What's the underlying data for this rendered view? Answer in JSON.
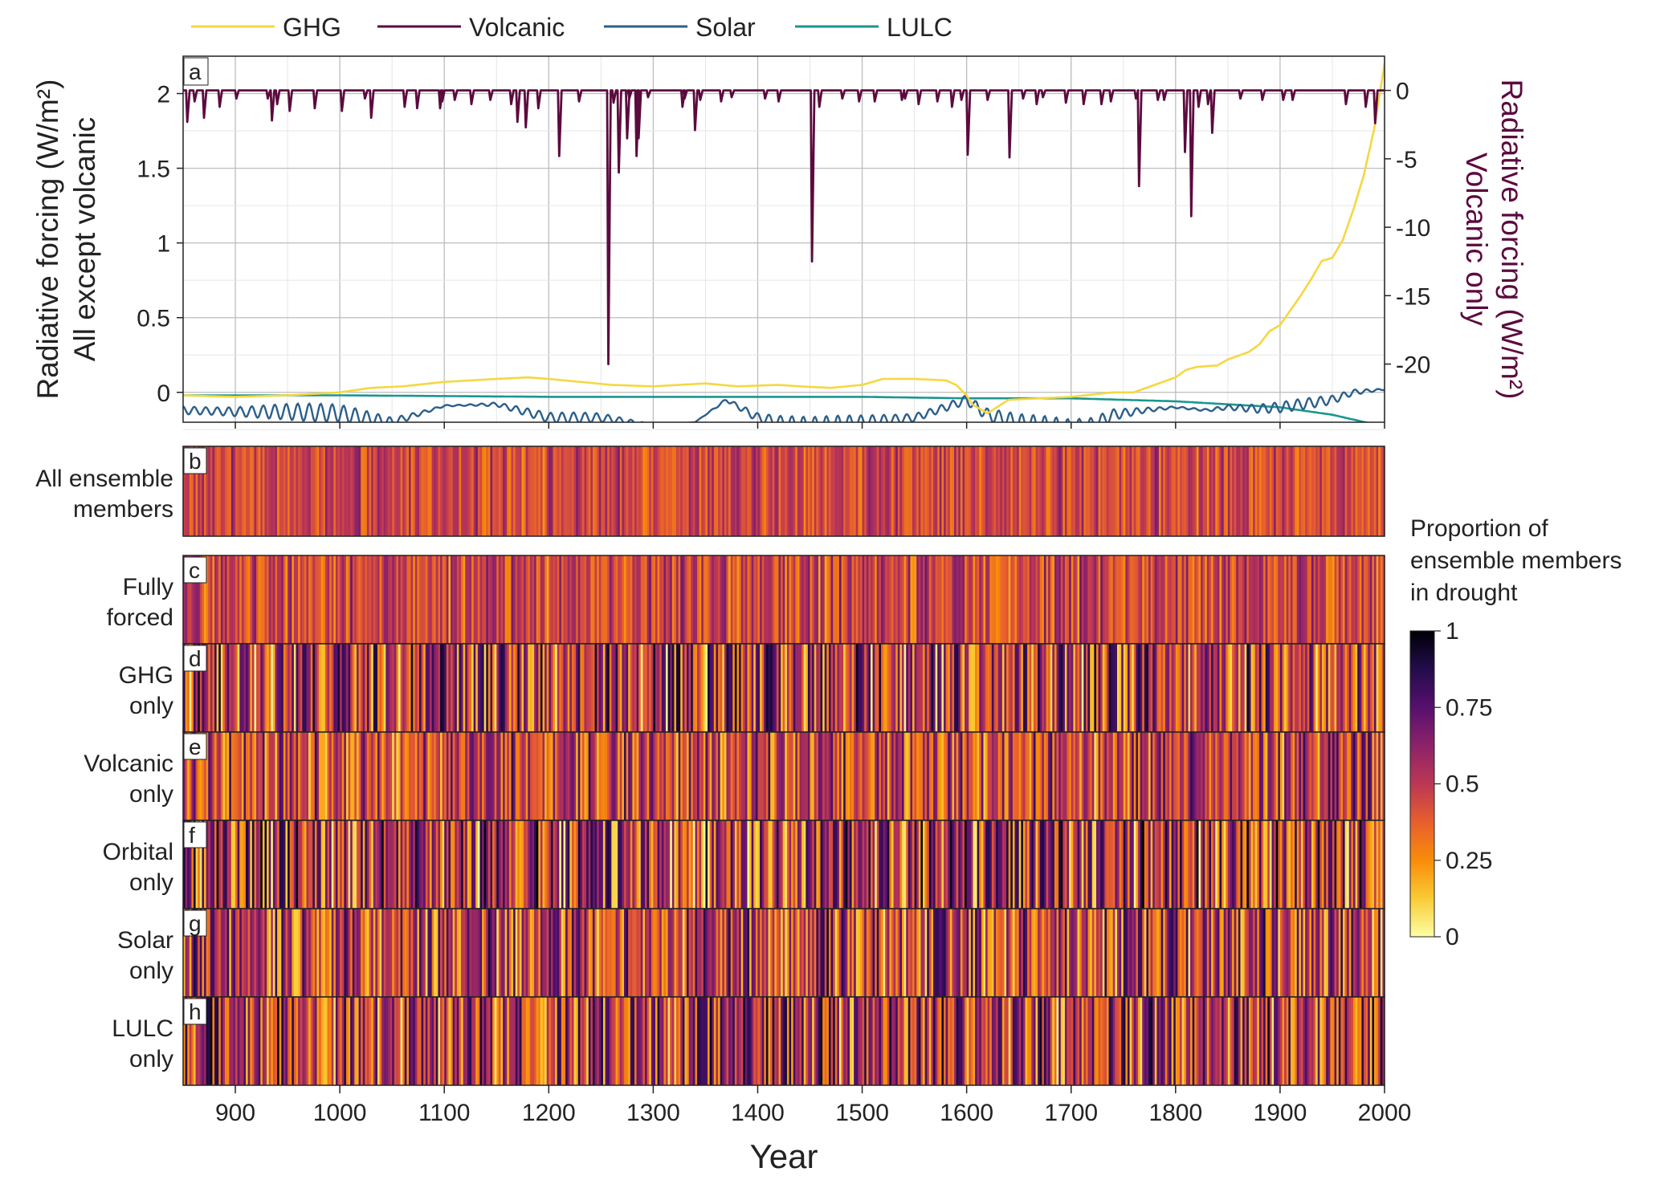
{
  "chart_data": {
    "type": "line",
    "xlabel": "Year",
    "xlim": [
      850,
      2000
    ],
    "xticks": [
      900,
      1000,
      1100,
      1200,
      1300,
      1400,
      1500,
      1600,
      1700,
      1800,
      1900,
      2000
    ],
    "legend": {
      "placement": "top",
      "entries": [
        {
          "name": "GHG",
          "color": "#F5D742"
        },
        {
          "name": "Volcanic",
          "color": "#5C0A3E"
        },
        {
          "name": "Solar",
          "color": "#2C5F8A"
        },
        {
          "name": "LULC",
          "color": "#1B9690"
        }
      ]
    },
    "panel_a": {
      "label": "a",
      "ylabel_left_line1": "Radiative forcing (W/m²)",
      "ylabel_left_line2": "All except volcanic",
      "ylabel_right_line1": "Radiative forcing (W/m²)",
      "ylabel_right_line2": "Volcanic only",
      "ylim_left": [
        -0.2,
        2.25
      ],
      "yticks_left": [
        "0",
        "0.5",
        "1",
        "1.5",
        "2"
      ],
      "ylim_right": [
        -24.25,
        2.5
      ],
      "yticks_right": [
        "0",
        "-5",
        "-10",
        "-15",
        "-20"
      ],
      "grid": true,
      "series": [
        {
          "name": "GHG",
          "axis": "left",
          "color": "#F5D742",
          "x": [
            850,
            900,
            950,
            1000,
            1030,
            1060,
            1100,
            1150,
            1180,
            1200,
            1230,
            1260,
            1300,
            1350,
            1380,
            1420,
            1440,
            1470,
            1500,
            1520,
            1550,
            1580,
            1590,
            1600,
            1605,
            1620,
            1640,
            1700,
            1740,
            1760,
            1780,
            1800,
            1810,
            1820,
            1840,
            1850,
            1870,
            1880,
            1890,
            1900,
            1910,
            1920,
            1930,
            1940,
            1950,
            1960,
            1970,
            1980,
            1990,
            2000
          ],
          "y": [
            -0.02,
            -0.03,
            -0.02,
            0.0,
            0.03,
            0.04,
            0.07,
            0.09,
            0.1,
            0.09,
            0.07,
            0.05,
            0.04,
            0.06,
            0.04,
            0.05,
            0.04,
            0.03,
            0.05,
            0.09,
            0.09,
            0.08,
            0.05,
            -0.02,
            -0.08,
            -0.14,
            -0.05,
            -0.03,
            0.0,
            0.0,
            0.05,
            0.1,
            0.15,
            0.17,
            0.18,
            0.22,
            0.27,
            0.32,
            0.41,
            0.45,
            0.55,
            0.65,
            0.76,
            0.88,
            0.9,
            1.02,
            1.22,
            1.45,
            1.76,
            2.2
          ]
        },
        {
          "name": "Solar",
          "axis": "left",
          "color": "#2C5F8A",
          "oscillating": true,
          "x": [
            850,
            900,
            950,
            1000,
            1050,
            1100,
            1150,
            1200,
            1250,
            1280,
            1300,
            1340,
            1370,
            1400,
            1420,
            1450,
            1500,
            1550,
            1580,
            1600,
            1620,
            1650,
            1700,
            1720,
            1740,
            1770,
            1800,
            1830,
            1850,
            1880,
            1900,
            1920,
            1950,
            1970,
            2000
          ],
          "y": [
            -0.12,
            -0.13,
            -0.13,
            -0.14,
            -0.2,
            -0.09,
            -0.08,
            -0.17,
            -0.17,
            -0.2,
            -0.22,
            -0.2,
            -0.05,
            -0.17,
            -0.2,
            -0.22,
            -0.2,
            -0.17,
            -0.1,
            -0.05,
            -0.15,
            -0.2,
            -0.24,
            -0.22,
            -0.15,
            -0.12,
            -0.1,
            -0.12,
            -0.1,
            -0.11,
            -0.1,
            -0.08,
            -0.05,
            0.0,
            0.02
          ]
        },
        {
          "name": "LULC",
          "axis": "left",
          "color": "#1B9690",
          "x": [
            850,
            1000,
            1200,
            1400,
            1500,
            1600,
            1700,
            1750,
            1800,
            1850,
            1900,
            1950,
            2000
          ],
          "y": [
            -0.02,
            -0.02,
            -0.03,
            -0.03,
            -0.03,
            -0.04,
            -0.04,
            -0.05,
            -0.06,
            -0.08,
            -0.1,
            -0.15,
            -0.23
          ]
        },
        {
          "name": "Volcanic",
          "axis": "right",
          "color": "#5C0A3E",
          "eruptions_x": [
            854,
            861,
            870,
            885,
            901,
            931,
            935,
            940,
            952,
            976,
            1002,
            1024,
            1030,
            1062,
            1074,
            1096,
            1098,
            1110,
            1126,
            1144,
            1164,
            1170,
            1178,
            1190,
            1210,
            1229,
            1257,
            1262,
            1267,
            1275,
            1277,
            1284,
            1286,
            1295,
            1328,
            1330,
            1340,
            1345,
            1365,
            1375,
            1407,
            1420,
            1452,
            1459,
            1481,
            1497,
            1512,
            1538,
            1541,
            1554,
            1572,
            1586,
            1595,
            1601,
            1620,
            1641,
            1654,
            1667,
            1673,
            1695,
            1712,
            1729,
            1738,
            1762,
            1765,
            1783,
            1789,
            1809,
            1815,
            1822,
            1831,
            1835,
            1862,
            1883,
            1903,
            1912,
            1963,
            1982,
            1991
          ],
          "eruptions_depth": [
            -2.3,
            -0.8,
            -2.0,
            -1.2,
            -0.6,
            -0.6,
            -2.2,
            -1.0,
            -1.5,
            -1.3,
            -1.5,
            -0.6,
            -2.0,
            -1.2,
            -1.3,
            -1.3,
            -0.8,
            -0.7,
            -1.0,
            -0.7,
            -1.0,
            -2.3,
            -2.7,
            -1.3,
            -4.8,
            -0.8,
            -20.0,
            -0.9,
            -6.0,
            -3.5,
            -0.6,
            -4.8,
            -3.5,
            -0.5,
            -1.2,
            -0.6,
            -2.9,
            -0.7,
            -0.8,
            -0.5,
            -0.6,
            -0.8,
            -12.5,
            -1.2,
            -0.6,
            -0.8,
            -0.8,
            -0.7,
            -0.6,
            -1.0,
            -0.8,
            -1.2,
            -0.7,
            -4.7,
            -0.7,
            -4.9,
            -0.6,
            -1.0,
            -0.5,
            -0.9,
            -1.0,
            -1.0,
            -0.8,
            -0.6,
            -7.0,
            -0.7,
            -0.7,
            -4.5,
            -9.2,
            -1.2,
            -1.0,
            -3.1,
            -0.6,
            -0.7,
            -0.7,
            -0.7,
            -1.0,
            -1.2,
            -2.4
          ]
        }
      ]
    },
    "heatmap_panels": [
      {
        "label": "b",
        "row_label_line1": "All ensemble",
        "row_label_line2": "members"
      },
      {
        "label": "c",
        "row_label_line1": "Fully",
        "row_label_line2": "forced"
      },
      {
        "label": "d",
        "row_label_line1": "GHG",
        "row_label_line2": "only"
      },
      {
        "label": "e",
        "row_label_line1": "Volcanic",
        "row_label_line2": "only"
      },
      {
        "label": "f",
        "row_label_line1": "Orbital",
        "row_label_line2": "only"
      },
      {
        "label": "g",
        "row_label_line1": "Solar",
        "row_label_line2": "only"
      },
      {
        "label": "h",
        "row_label_line1": "LULC",
        "row_label_line2": "only"
      }
    ],
    "heatmap_value_range": [
      0,
      1
    ],
    "colorbar": {
      "title_line1": "Proportion of",
      "title_line2": "ensemble members",
      "title_line3": "in drought",
      "ticks": [
        "1",
        "0.75",
        "0.5",
        "0.25",
        "0"
      ],
      "tick_values": [
        1,
        0.75,
        0.5,
        0.25,
        0
      ],
      "colormap": "inferno-reversed"
    }
  }
}
